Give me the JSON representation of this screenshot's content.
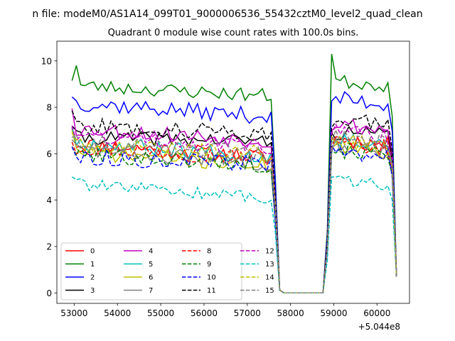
{
  "figure": {
    "suptitle": "n file: modeM0/AS1A14_099T01_9000006536_55432cztM0_level2_quad_clean"
  },
  "chart_data": {
    "type": "line",
    "title": "Quadrant 0 module wise count rates with 100.0s bins.",
    "xlabel": "",
    "ylabel": "",
    "x_offset_label": "+5.044e8",
    "xlim": [
      52600,
      60750
    ],
    "ylim": [
      -0.45,
      10.85
    ],
    "x_ticks": [
      53000,
      54000,
      55000,
      56000,
      57000,
      58000,
      59000,
      60000
    ],
    "y_ticks": [
      0,
      2,
      4,
      6,
      8,
      10
    ],
    "x_start": 52950,
    "x_step": 100,
    "legend_position": "lower-left",
    "legend_columns": 4,
    "series": [
      {
        "name": "0",
        "color": "#ff0000",
        "dash": "solid",
        "gap": 0.03,
        "base": 6.45,
        "slope": -0.6,
        "amp": 0.35,
        "seed": 11,
        "first": 7.1
      },
      {
        "name": "1",
        "color": "#008000",
        "dash": "solid",
        "gap": 0.03,
        "base": 8.95,
        "slope": -0.45,
        "amp": 0.3,
        "seed": 23,
        "first": 9.15,
        "second": 9.8,
        "peak": 10.3
      },
      {
        "name": "2",
        "color": "#0000ff",
        "dash": "solid",
        "gap": 0.03,
        "base": 8.2,
        "slope": -0.6,
        "amp": 0.35,
        "seed": 37,
        "first": 8.45
      },
      {
        "name": "3",
        "color": "#000000",
        "dash": "solid",
        "gap": 0.03,
        "base": 6.7,
        "slope": -0.15,
        "amp": 0.3,
        "seed": 41,
        "first": 7.2
      },
      {
        "name": "4",
        "color": "#bf00bf",
        "dash": "solid",
        "gap": 0.03,
        "base": 7.1,
        "slope": -0.55,
        "amp": 0.35,
        "seed": 53,
        "first": 7.95
      },
      {
        "name": "5",
        "color": "#00bfbf",
        "dash": "solid",
        "gap": 0.03,
        "base": 6.5,
        "slope": -0.6,
        "amp": 0.35,
        "seed": 67,
        "first": 7.15
      },
      {
        "name": "6",
        "color": "#bfbf00",
        "dash": "solid",
        "gap": 0.03,
        "base": 6.1,
        "slope": -0.6,
        "amp": 0.35,
        "seed": 71,
        "first": 7.0
      },
      {
        "name": "7",
        "color": "#808080",
        "dash": "solid",
        "gap": 0.03,
        "base": 6.2,
        "slope": -0.6,
        "amp": 0.35,
        "seed": 83,
        "first": 6.6
      },
      {
        "name": "8",
        "color": "#ff0000",
        "dash": "dashed",
        "gap": 0.03,
        "base": 6.3,
        "slope": -0.5,
        "amp": 0.35,
        "seed": 97,
        "first": 6.5
      },
      {
        "name": "9",
        "color": "#008000",
        "dash": "dashed",
        "gap": 0.03,
        "base": 6.0,
        "slope": -0.5,
        "amp": 0.35,
        "seed": 101,
        "first": 6.3
      },
      {
        "name": "10",
        "color": "#0000ff",
        "dash": "dashed",
        "gap": 0.03,
        "base": 5.85,
        "slope": -0.3,
        "amp": 0.35,
        "seed": 113,
        "first": 6.3
      },
      {
        "name": "11",
        "color": "#000000",
        "dash": "dashed",
        "gap": 0.03,
        "base": 7.2,
        "slope": -0.3,
        "amp": 0.35,
        "seed": 127,
        "first": 7.85
      },
      {
        "name": "12",
        "color": "#bf00bf",
        "dash": "dashed",
        "gap": 0.03,
        "base": 6.8,
        "slope": -0.5,
        "amp": 0.35,
        "seed": 131,
        "first": 7.2
      },
      {
        "name": "13",
        "color": "#00bfbf",
        "dash": "dashed",
        "gap": 0.03,
        "base": 4.7,
        "slope": -0.6,
        "amp": 0.25,
        "seed": 139,
        "first": 5.0
      },
      {
        "name": "14",
        "color": "#bfbf00",
        "dash": "dashed",
        "gap": 0.03,
        "base": 6.4,
        "slope": -0.4,
        "amp": 0.35,
        "seed": 149,
        "first": 6.9
      },
      {
        "name": "15",
        "color": "#808080",
        "dash": "dashed",
        "gap": 0.03,
        "base": 6.5,
        "slope": -0.5,
        "amp": 0.35,
        "seed": 151,
        "first": 6.7
      }
    ]
  }
}
